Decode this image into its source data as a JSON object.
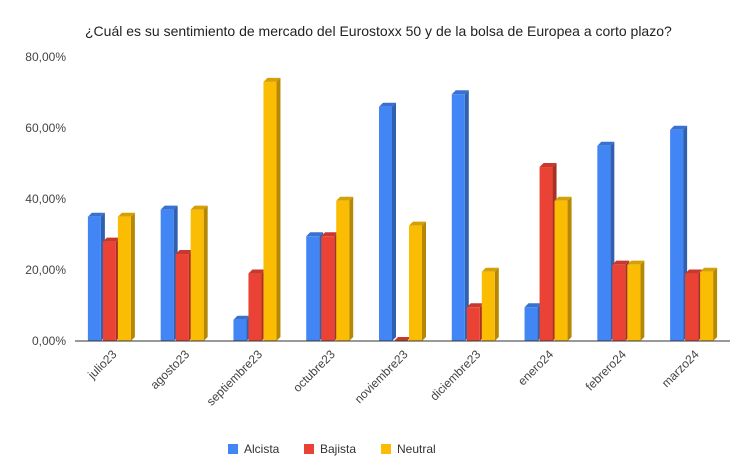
{
  "chart_data": {
    "type": "bar",
    "title": "¿Cuál es su sentimiento de mercado del Eurostoxx 50 y de la bolsa de Europea a corto plazo?",
    "categories": [
      "julio23",
      "agosto23",
      "septiembre23",
      "octubre23",
      "noviembre23",
      "diciembre23",
      "enero24",
      "febrero24",
      "marzo24"
    ],
    "series": [
      {
        "name": "Alcista",
        "color": "#4285f4",
        "values": [
          35,
          37,
          6,
          29.5,
          66,
          69.5,
          9.5,
          55,
          59.5
        ]
      },
      {
        "name": "Bajista",
        "color": "#ea4335",
        "values": [
          28,
          24.5,
          19,
          29.5,
          0,
          9.5,
          49,
          21.5,
          19
        ]
      },
      {
        "name": "Neutral",
        "color": "#fbbc04",
        "values": [
          35,
          37,
          73,
          39.5,
          32.5,
          19.5,
          39.5,
          21.5,
          19.5
        ]
      }
    ],
    "ylim": [
      0,
      80
    ],
    "yticks": [
      0,
      20,
      40,
      60,
      80
    ],
    "ytick_labels": [
      "0,00%",
      "20,00%",
      "40,00%",
      "60,00%",
      "80,00%"
    ],
    "grid": false,
    "legend_position": "bottom"
  }
}
